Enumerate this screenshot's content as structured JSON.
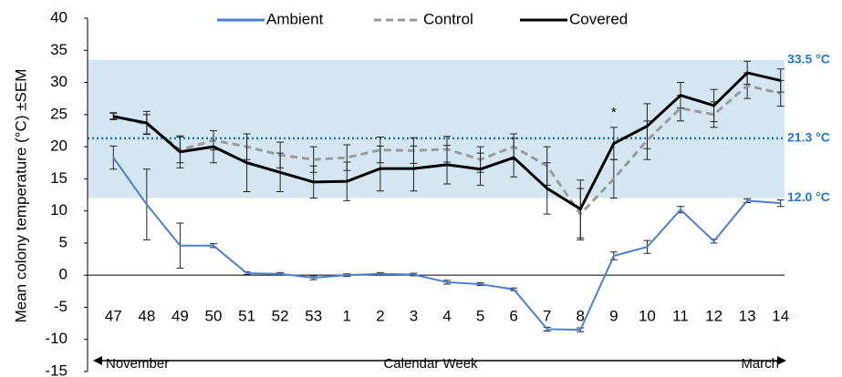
{
  "chart_data": {
    "type": "line",
    "y_label": "Mean colony temperature (°C) ±SEM",
    "x_label": "Calendar Week",
    "x_start_label": "November",
    "x_end_label": "March",
    "annotation": {
      "category_index": 15,
      "text": "*"
    },
    "categories": [
      "47",
      "48",
      "49",
      "50",
      "51",
      "52",
      "53",
      "1",
      "2",
      "3",
      "4",
      "5",
      "6",
      "7",
      "8",
      "9",
      "10",
      "11",
      "12",
      "13",
      "14"
    ],
    "ylim": [
      -15,
      40
    ],
    "yticks": [
      -15,
      -10,
      -5,
      0,
      5,
      10,
      15,
      20,
      25,
      30,
      35,
      40
    ],
    "reference_band": {
      "color": "#d5e6f3",
      "lines": [
        {
          "value": 12.0,
          "label": "12.0 °C"
        },
        {
          "value": 21.3,
          "label": "21.3 °C",
          "dotted": true
        },
        {
          "value": 33.5,
          "label": "33.5 °C"
        }
      ]
    },
    "series": [
      {
        "name": "Ambient",
        "color": "#4a7fcf",
        "dash": false,
        "values": [
          18.3,
          11,
          4.6,
          4.6,
          0.3,
          0.2,
          -0.4,
          0,
          0.2,
          0.1,
          -1.1,
          -1.4,
          -2.2,
          -8.4,
          -8.5,
          3,
          4.4,
          10.2,
          5.3,
          11.6,
          11.2
        ],
        "errors": [
          1.8,
          5.5,
          3.5,
          0.3,
          0.2,
          0.2,
          0.3,
          0.2,
          0.2,
          0.2,
          0.3,
          0.2,
          0.2,
          0.3,
          0.3,
          0.6,
          1,
          0.5,
          0.3,
          0.3,
          0.5
        ]
      },
      {
        "name": "Control",
        "color": "#9a9a9a",
        "dash": true,
        "values": [
          24.8,
          23.5,
          19.5,
          21,
          20,
          18.7,
          18,
          18.3,
          19.5,
          19.4,
          19.6,
          18,
          20,
          17,
          9.5,
          15,
          21,
          26,
          25,
          29.5,
          28.3
        ],
        "errors": [
          0.5,
          1.5,
          2,
          1.5,
          2,
          2,
          2,
          2,
          2,
          2,
          2,
          2,
          2,
          3,
          4,
          3,
          3,
          2,
          2,
          2,
          2
        ]
      },
      {
        "name": "Covered",
        "color": "#000000",
        "dash": false,
        "values": [
          24.7,
          23.7,
          19.2,
          20,
          17.5,
          16,
          14.5,
          14.6,
          16.6,
          16.6,
          17.2,
          16.5,
          18.3,
          13.5,
          10.3,
          20.5,
          23.2,
          28,
          26.4,
          31.5,
          30.3
        ],
        "errors": [
          0.5,
          1.8,
          2.5,
          2.5,
          4.5,
          3,
          2.5,
          3,
          3.5,
          3.5,
          3,
          2.5,
          3,
          4,
          4.5,
          2.5,
          3.5,
          2,
          2.5,
          1.8,
          1.8
        ]
      }
    ]
  }
}
